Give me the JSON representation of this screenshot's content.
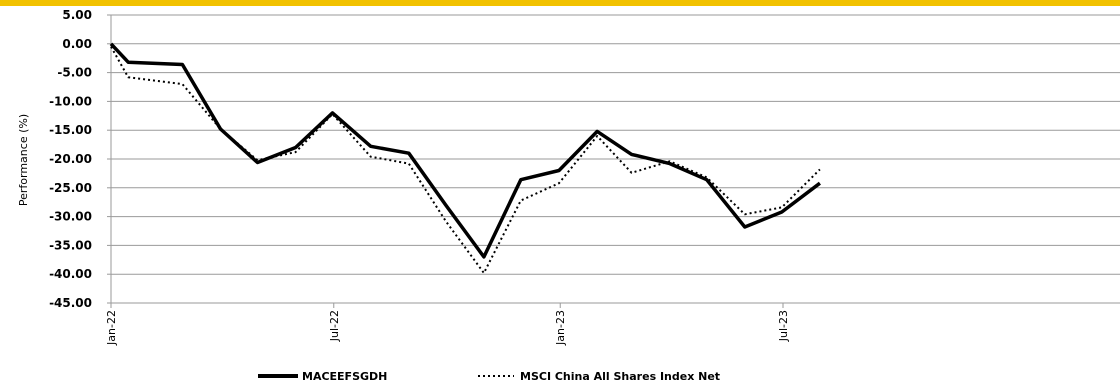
{
  "accent_color": "#f2c200",
  "chart_data": {
    "type": "line",
    "title": "",
    "xlabel": "",
    "ylabel": "Performance (%)",
    "ylim": [
      -45,
      5
    ],
    "y_ticks": [
      "5.00",
      "0.00",
      "-5.00",
      "-10.00",
      "-15.00",
      "-20.00",
      "-25.00",
      "-30.00",
      "-35.00",
      "-40.00",
      "-45.00"
    ],
    "x_ticks": [
      "Jan-22",
      "Jul-22",
      "Jan-23",
      "Jul-23"
    ],
    "grid": "horizontal",
    "legend_position": "bottom",
    "series": [
      {
        "name": "MACEEFSGDH",
        "style": "solid",
        "color": "#000000",
        "points": [
          [
            "2022-01-01",
            0.0
          ],
          [
            "2022-01-15",
            -3.2
          ],
          [
            "2022-02-28",
            -3.6
          ],
          [
            "2022-03-31",
            -14.8
          ],
          [
            "2022-04-30",
            -20.6
          ],
          [
            "2022-05-31",
            -18.0
          ],
          [
            "2022-06-30",
            -12.0
          ],
          [
            "2022-07-31",
            -17.8
          ],
          [
            "2022-08-31",
            -19.0
          ],
          [
            "2022-09-30",
            -28.0
          ],
          [
            "2022-10-31",
            -37.0
          ],
          [
            "2022-11-30",
            -23.6
          ],
          [
            "2022-12-31",
            -22.0
          ],
          [
            "2023-01-31",
            -15.2
          ],
          [
            "2023-02-28",
            -19.2
          ],
          [
            "2023-03-31",
            -20.8
          ],
          [
            "2023-04-30",
            -23.6
          ],
          [
            "2023-05-31",
            -31.8
          ],
          [
            "2023-06-30",
            -29.2
          ],
          [
            "2023-07-31",
            -24.2
          ]
        ]
      },
      {
        "name": "MSCI China All Shares Index Net",
        "style": "dotted",
        "color": "#000000",
        "points": [
          [
            "2022-01-01",
            -0.5
          ],
          [
            "2022-01-15",
            -5.8
          ],
          [
            "2022-02-28",
            -7.0
          ],
          [
            "2022-03-31",
            -14.8
          ],
          [
            "2022-04-30",
            -20.2
          ],
          [
            "2022-05-31",
            -18.8
          ],
          [
            "2022-06-30",
            -12.2
          ],
          [
            "2022-07-31",
            -19.6
          ],
          [
            "2022-08-31",
            -20.8
          ],
          [
            "2022-09-30",
            -30.8
          ],
          [
            "2022-10-31",
            -39.8
          ],
          [
            "2022-11-30",
            -27.2
          ],
          [
            "2022-12-31",
            -24.2
          ],
          [
            "2023-01-31",
            -16.0
          ],
          [
            "2023-02-28",
            -22.4
          ],
          [
            "2023-03-31",
            -20.4
          ],
          [
            "2023-04-30",
            -23.2
          ],
          [
            "2023-05-31",
            -29.6
          ],
          [
            "2023-06-30",
            -28.4
          ],
          [
            "2023-07-31",
            -21.8
          ]
        ]
      }
    ]
  }
}
